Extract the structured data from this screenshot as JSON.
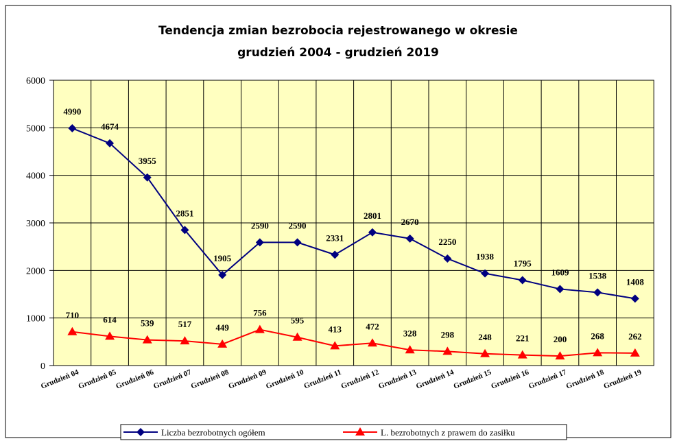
{
  "chart_data": {
    "type": "line",
    "title": [
      "Tendencja zmian bezrobocia rejestrowanego w okresie",
      "grudzień 2004 - grudzień 2019"
    ],
    "categories": [
      "Grudzień 04",
      "Grudzień 05",
      "Grudzień 06",
      "Grudzień 07",
      "Grudzień 08",
      "Grudzień 09",
      "Grudzień 10",
      "Grudzień 11",
      "Grudzień 12",
      "Grudzień 13",
      "Grudzień 14",
      "Grudzień 15",
      "Grudzień 16",
      "Grudzień 17",
      "Grudzień 18",
      "Grudzień 19"
    ],
    "series": [
      {
        "name": "Liczba bezrobotnych ogółem",
        "color": "#000080",
        "marker": "diamond",
        "values": [
          4990,
          4674,
          3955,
          2851,
          1905,
          2590,
          2590,
          2331,
          2801,
          2670,
          2250,
          1938,
          1795,
          1609,
          1538,
          1408
        ]
      },
      {
        "name": "L. bezrobotnych z prawem do zasiłku",
        "color": "#ff0000",
        "marker": "triangle",
        "values": [
          710,
          614,
          539,
          517,
          449,
          756,
          595,
          413,
          472,
          328,
          298,
          248,
          221,
          200,
          268,
          262
        ]
      }
    ],
    "ylim": [
      0,
      6000
    ],
    "yticks": [
      0,
      1000,
      2000,
      3000,
      4000,
      5000,
      6000
    ],
    "grid": true,
    "plot_background": "#ffffc0",
    "legend": "bottom"
  }
}
